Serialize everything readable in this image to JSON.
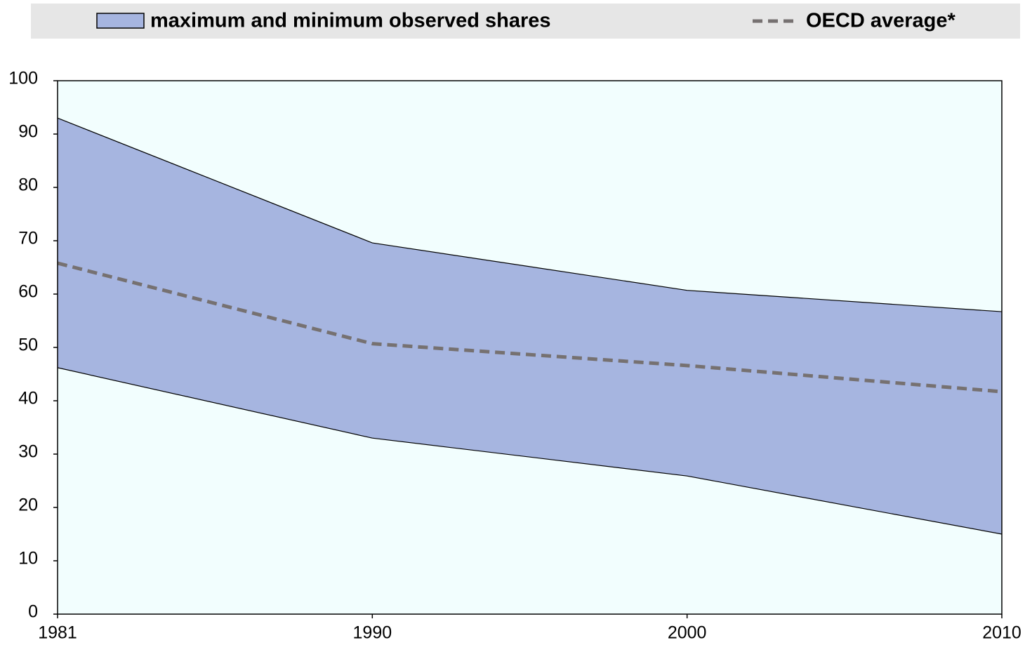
{
  "chart_data": {
    "type": "area",
    "categories": [
      "1981",
      "1990",
      "2000",
      "2010"
    ],
    "series": [
      {
        "name": "maximum and minimum observed shares",
        "color": "#a6b5e0",
        "upper": [
          93.0,
          69.6,
          60.7,
          56.7
        ],
        "lower": [
          46.2,
          33.0,
          25.9,
          15.0
        ]
      },
      {
        "name": "OECD average*",
        "color": "#767171",
        "dashed": true,
        "values": [
          65.8,
          50.7,
          46.6,
          41.7
        ]
      }
    ],
    "ylim": [
      0,
      100
    ],
    "yticks": [
      0,
      10,
      20,
      30,
      40,
      50,
      60,
      70,
      80,
      90,
      100
    ],
    "plot_background": "#f2fefe",
    "legend_background": "#e6e6e6"
  }
}
